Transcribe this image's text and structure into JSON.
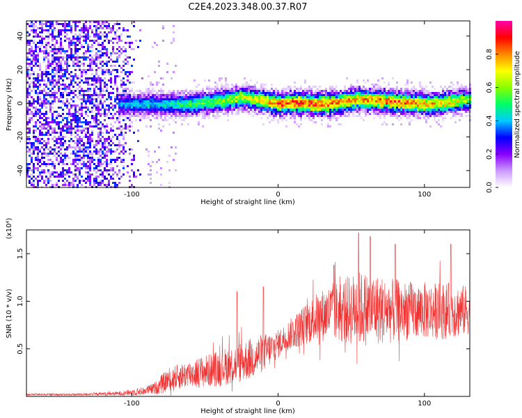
{
  "title": "C2E4.2023.348.00.37.R07",
  "colors": {
    "snr_line": "#ee3333",
    "spectrogram_background": "#ffffff"
  },
  "chart_data": [
    {
      "type": "heatmap",
      "name_id": "spectrogram",
      "title": "C2E4.2023.348.00.37.R07",
      "xlabel": "Height of straight line (km)",
      "ylabel": "Frequency (Hz)",
      "xlim": [
        -172,
        131
      ],
      "ylim": [
        -50,
        49
      ],
      "x_ticks": [
        -100,
        0,
        100
      ],
      "y_ticks": [
        -40,
        -20,
        0,
        20,
        40
      ],
      "colorbar": {
        "label": "Normalized spectral amplitude",
        "range": [
          0,
          1
        ],
        "ticks": [
          "0.0",
          "0.2",
          "0.4",
          "0.6",
          "0.8"
        ],
        "tick_values": [
          0.0,
          0.2,
          0.4,
          0.6,
          0.8
        ],
        "colormap": [
          "#ffffff",
          "#cc99ff",
          "#8800ff",
          "#0000ff",
          "#00ccff",
          "#00ff66",
          "#88ff00",
          "#ffff00",
          "#ff8800",
          "#ff0000",
          "#ff00aa"
        ]
      },
      "noise_region_x": [
        -172,
        -100
      ],
      "signal_band": {
        "x": [
          -110,
          -80,
          -60,
          -40,
          -25,
          -10,
          0,
          10,
          25,
          40,
          55,
          70,
          85,
          100,
          115,
          131
        ],
        "center_freq": [
          0,
          0,
          0,
          2,
          4,
          2,
          0,
          1,
          0,
          1,
          3,
          2,
          1,
          0,
          1,
          3
        ],
        "peak_amplitude": [
          0.4,
          0.45,
          0.55,
          0.6,
          0.7,
          0.75,
          0.9,
          0.9,
          0.9,
          0.85,
          0.8,
          0.85,
          0.85,
          0.8,
          0.75,
          0.6
        ]
      }
    },
    {
      "type": "line",
      "name_id": "snr",
      "xlabel": "Height of straight line (km)",
      "ylabel": "SNR (10 * v/v)",
      "y_multiplier": "(x10⁴)",
      "xlim": [
        -172,
        131
      ],
      "ylim": [
        0,
        1.75
      ],
      "x_ticks": [
        -100,
        0,
        100
      ],
      "y_ticks": [
        0.5,
        1.0,
        1.5
      ],
      "y_tick_labels": [
        "0.5",
        "1.0",
        "1.5"
      ],
      "envelope": {
        "x": [
          -172,
          -140,
          -110,
          -95,
          -85,
          -80,
          -75,
          -65,
          -55,
          -45,
          -35,
          -25,
          -15,
          -5,
          0,
          5,
          15,
          25,
          35,
          45,
          55,
          65,
          75,
          85,
          95,
          105,
          115,
          125,
          131
        ],
        "mean": [
          0.02,
          0.02,
          0.03,
          0.05,
          0.08,
          0.12,
          0.18,
          0.22,
          0.25,
          0.28,
          0.32,
          0.36,
          0.42,
          0.5,
          0.55,
          0.62,
          0.72,
          0.82,
          0.88,
          0.9,
          0.92,
          0.92,
          0.9,
          0.9,
          0.9,
          0.9,
          0.9,
          0.9,
          0.9
        ],
        "spread": [
          0.01,
          0.01,
          0.02,
          0.04,
          0.06,
          0.1,
          0.12,
          0.14,
          0.16,
          0.18,
          0.2,
          0.22,
          0.22,
          0.18,
          0.15,
          0.15,
          0.2,
          0.25,
          0.3,
          0.35,
          0.4,
          0.38,
          0.35,
          0.32,
          0.3,
          0.3,
          0.3,
          0.28,
          0.25
        ]
      },
      "peaks": [
        {
          "x": -28,
          "y": 1.1
        },
        {
          "x": -10,
          "y": 1.15
        },
        {
          "x": 38,
          "y": 1.38
        },
        {
          "x": 55,
          "y": 1.72
        },
        {
          "x": 63,
          "y": 1.68
        },
        {
          "x": 80,
          "y": 1.6
        },
        {
          "x": 118,
          "y": 1.6
        }
      ]
    }
  ]
}
